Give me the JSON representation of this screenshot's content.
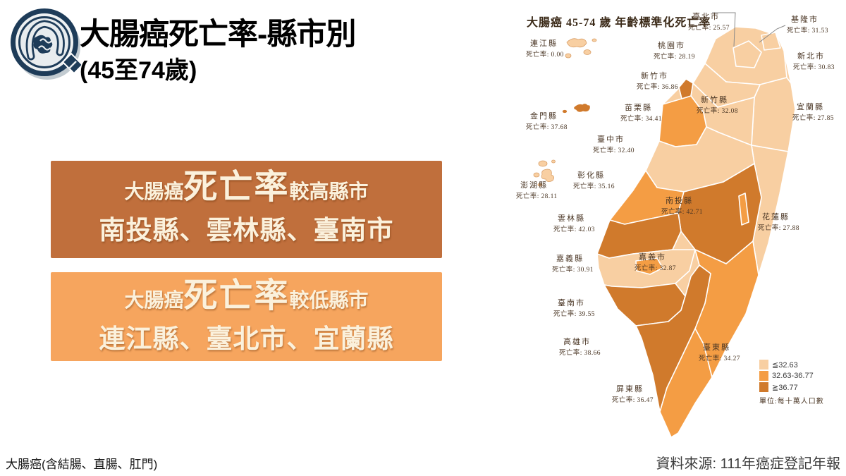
{
  "header": {
    "logo_icon": "colon-magnifier-icon",
    "title_line1": "大腸癌死亡率-縣市別",
    "title_line2": "(45至74歲)"
  },
  "boxes": {
    "high": {
      "prefix": "大腸癌",
      "emphasis": "死亡率",
      "suffix": "較高縣市",
      "counties": "南投縣、雲林縣、臺南市",
      "bg": "#c06f3c"
    },
    "low": {
      "prefix": "大腸癌",
      "emphasis": "死亡率",
      "suffix": "較低縣市",
      "counties": "連江縣、臺北市、宜蘭縣",
      "bg": "#f6a55e"
    }
  },
  "map": {
    "title": "大腸癌 45-74 歲 年齡標準化死亡率",
    "value_prefix": "死亡率:",
    "legend": {
      "items": [
        {
          "key": "low",
          "label": "≦32.63",
          "color": "#f8cfa2"
        },
        {
          "key": "mid",
          "label": "32.63-36.77",
          "color": "#f49d44"
        },
        {
          "key": "high",
          "label": "≧36.77",
          "color": "#d07a2c"
        }
      ],
      "unit": "單位:每十萬人口數"
    },
    "counties": [
      {
        "name": "臺北市",
        "rate": "25.57",
        "category": "low"
      },
      {
        "name": "基隆市",
        "rate": "31.53",
        "category": "low"
      },
      {
        "name": "新北市",
        "rate": "30.83",
        "category": "low"
      },
      {
        "name": "連江縣",
        "rate": "0.00",
        "category": "low"
      },
      {
        "name": "桃園市",
        "rate": "28.19",
        "category": "low"
      },
      {
        "name": "新竹市",
        "rate": "36.86",
        "category": "high"
      },
      {
        "name": "新竹縣",
        "rate": "32.08",
        "category": "low"
      },
      {
        "name": "宜蘭縣",
        "rate": "27.85",
        "category": "low"
      },
      {
        "name": "金門縣",
        "rate": "37.68",
        "category": "high"
      },
      {
        "name": "苗栗縣",
        "rate": "34.41",
        "category": "mid"
      },
      {
        "name": "臺中市",
        "rate": "32.40",
        "category": "low"
      },
      {
        "name": "彰化縣",
        "rate": "35.16",
        "category": "mid"
      },
      {
        "name": "澎湖縣",
        "rate": "28.11",
        "category": "low"
      },
      {
        "name": "雲林縣",
        "rate": "42.03",
        "category": "high"
      },
      {
        "name": "南投縣",
        "rate": "42.71",
        "category": "high"
      },
      {
        "name": "花蓮縣",
        "rate": "27.88",
        "category": "low"
      },
      {
        "name": "嘉義縣",
        "rate": "30.91",
        "category": "low"
      },
      {
        "name": "嘉義市",
        "rate": "32.87",
        "category": "mid"
      },
      {
        "name": "臺南市",
        "rate": "39.55",
        "category": "high"
      },
      {
        "name": "高雄市",
        "rate": "38.66",
        "category": "high"
      },
      {
        "name": "臺東縣",
        "rate": "34.27",
        "category": "mid"
      },
      {
        "name": "屏東縣",
        "rate": "36.47",
        "category": "mid"
      }
    ]
  },
  "footer": {
    "left": "大腸癌(含結腸、直腸、肛門)",
    "right": "資料來源: 111年癌症登記年報"
  }
}
